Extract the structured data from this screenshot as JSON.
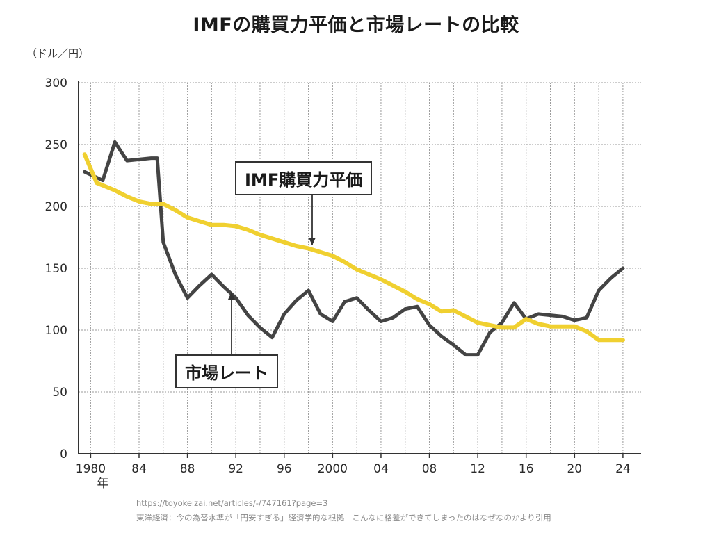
{
  "chart_data": {
    "type": "line",
    "title": "IMFの購買力平価と市場レートの比較",
    "ylabel": "（ドル／円）",
    "xlabel": "",
    "x_unit_label": "年",
    "ylim": [
      0,
      300
    ],
    "xlim": [
      1979,
      2025.5
    ],
    "grid": true,
    "y_ticks": [
      0,
      50,
      100,
      150,
      200,
      250,
      300
    ],
    "x_ticks": [
      {
        "year": 1980,
        "label": "1980"
      },
      {
        "year": 1984,
        "label": "84"
      },
      {
        "year": 1988,
        "label": "88"
      },
      {
        "year": 1992,
        "label": "92"
      },
      {
        "year": 1996,
        "label": "96"
      },
      {
        "year": 2000,
        "label": "2000"
      },
      {
        "year": 2004,
        "label": "04"
      },
      {
        "year": 2008,
        "label": "08"
      },
      {
        "year": 2012,
        "label": "12"
      },
      {
        "year": 2016,
        "label": "16"
      },
      {
        "year": 2020,
        "label": "20"
      },
      {
        "year": 2024,
        "label": "24"
      }
    ],
    "series": [
      {
        "name": "市場レート",
        "color": "#444444",
        "x": [
          1979.5,
          1981,
          1982,
          1983,
          1984,
          1985,
          1985.5,
          1986,
          1987,
          1988,
          1989,
          1990,
          1991,
          1992,
          1993,
          1994,
          1995,
          1996,
          1997,
          1998,
          1999,
          2000,
          2001,
          2002,
          2003,
          2004,
          2005,
          2006,
          2007,
          2008,
          2009,
          2010,
          2011,
          2012,
          2013,
          2014,
          2015,
          2016,
          2017,
          2018,
          2019,
          2020,
          2021,
          2022,
          2023,
          2024
        ],
        "values": [
          228,
          221,
          252,
          237,
          238,
          239,
          239,
          171,
          145,
          126,
          136,
          145,
          135,
          126,
          112,
          102,
          94,
          113,
          124,
          132,
          113,
          107,
          123,
          126,
          116,
          107,
          110,
          117,
          119,
          104,
          95,
          88,
          80,
          80,
          98,
          106,
          122,
          109,
          113,
          112,
          111,
          108,
          110,
          132,
          142,
          150
        ]
      },
      {
        "name": "IMF購買力平価",
        "color": "#f0d030",
        "x": [
          1979.5,
          1980.5,
          1982,
          1983,
          1984,
          1985,
          1986,
          1987,
          1988,
          1989,
          1990,
          1991,
          1992,
          1993,
          1994,
          1995,
          1996,
          1997,
          1998,
          1999,
          2000,
          2001,
          2002,
          2003,
          2004,
          2005,
          2006,
          2007,
          2008,
          2009,
          2010,
          2011,
          2012,
          2013,
          2014,
          2015,
          2016,
          2017,
          2018,
          2019,
          2020,
          2021,
          2022,
          2023,
          2024
        ],
        "values": [
          242,
          219,
          213,
          208,
          204,
          202,
          202,
          197,
          191,
          188,
          185,
          185,
          184,
          181,
          177,
          174,
          171,
          168,
          166,
          163,
          160,
          155,
          149,
          145,
          141,
          136,
          131,
          125,
          121,
          115,
          116,
          111,
          106,
          104,
          102,
          102,
          109,
          105,
          103,
          103,
          103,
          99,
          92,
          92,
          92
        ]
      }
    ],
    "annotations": [
      {
        "text": "IMF購買力平価",
        "series": "IMF購買力平価"
      },
      {
        "text": "市場レート",
        "series": "市場レート"
      }
    ],
    "source": {
      "line1": "https://toyokeizai.net/articles/-/747161?page=3",
      "line2": "東洋経済：今の為替水準が「円安すぎる」経済学的な根拠　こんなに格差ができてしまったのはなぜなのかより引用"
    }
  }
}
